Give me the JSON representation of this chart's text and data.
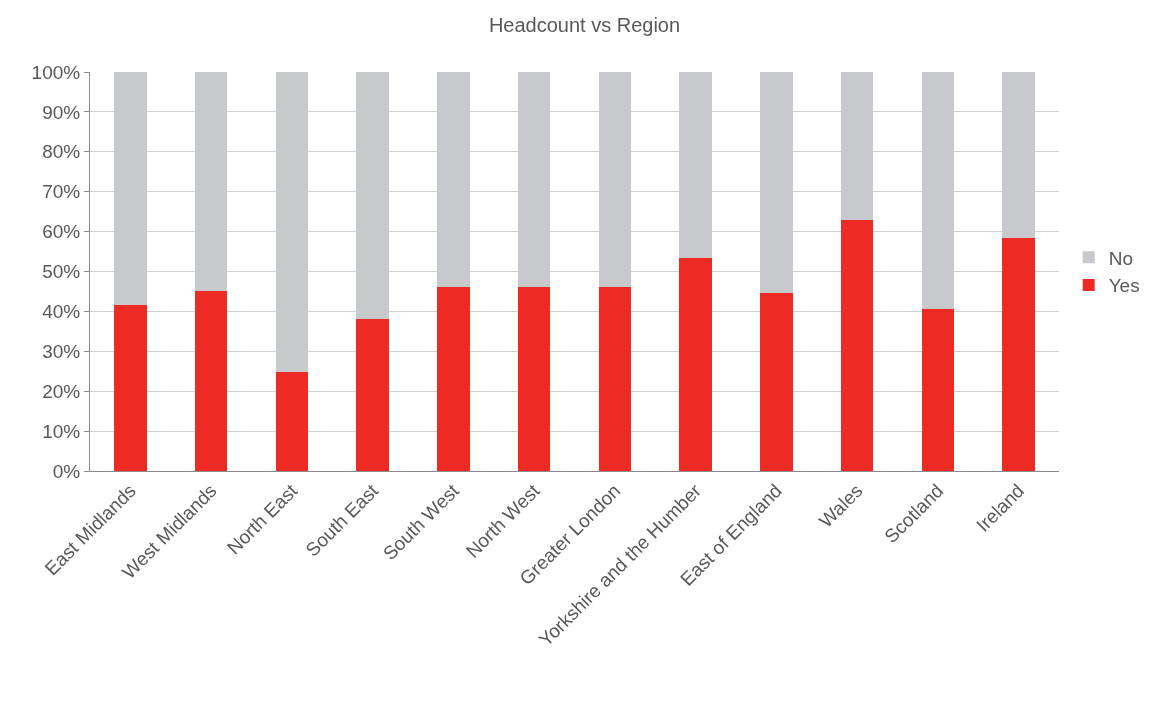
{
  "chart_data": {
    "type": "bar",
    "title": "Headcount vs Region",
    "stacked": true,
    "categories": [
      "East Midlands",
      "West Midlands",
      "North East",
      "South East",
      "South West",
      "North West",
      "Greater London",
      "Yorkshire and the Humber",
      "East of England",
      "Wales",
      "Scotland",
      "Ireland"
    ],
    "series": [
      {
        "name": "Yes",
        "color": "#ee2a24",
        "values": [
          41.5,
          45.2,
          24.9,
          38.2,
          46.0,
          46.0,
          46.2,
          53.3,
          44.5,
          63.0,
          40.7,
          58.5
        ]
      },
      {
        "name": "No",
        "color": "#c8c9cc",
        "values": [
          58.5,
          54.8,
          75.1,
          61.8,
          54.0,
          54.0,
          53.8,
          46.7,
          55.5,
          37.0,
          59.3,
          41.5
        ]
      }
    ],
    "ylim": [
      0,
      100
    ],
    "yticks": [
      {
        "value": 0,
        "label": "0%"
      },
      {
        "value": 10,
        "label": "10%"
      },
      {
        "value": 20,
        "label": "20%"
      },
      {
        "value": 30,
        "label": "30%"
      },
      {
        "value": 40,
        "label": "40%"
      },
      {
        "value": 50,
        "label": "50%"
      },
      {
        "value": 60,
        "label": "60%"
      },
      {
        "value": 70,
        "label": "70%"
      },
      {
        "value": 80,
        "label": "80%"
      },
      {
        "value": 90,
        "label": "90%"
      },
      {
        "value": 100,
        "label": "100%"
      }
    ],
    "grid": "y",
    "legend": "right"
  }
}
